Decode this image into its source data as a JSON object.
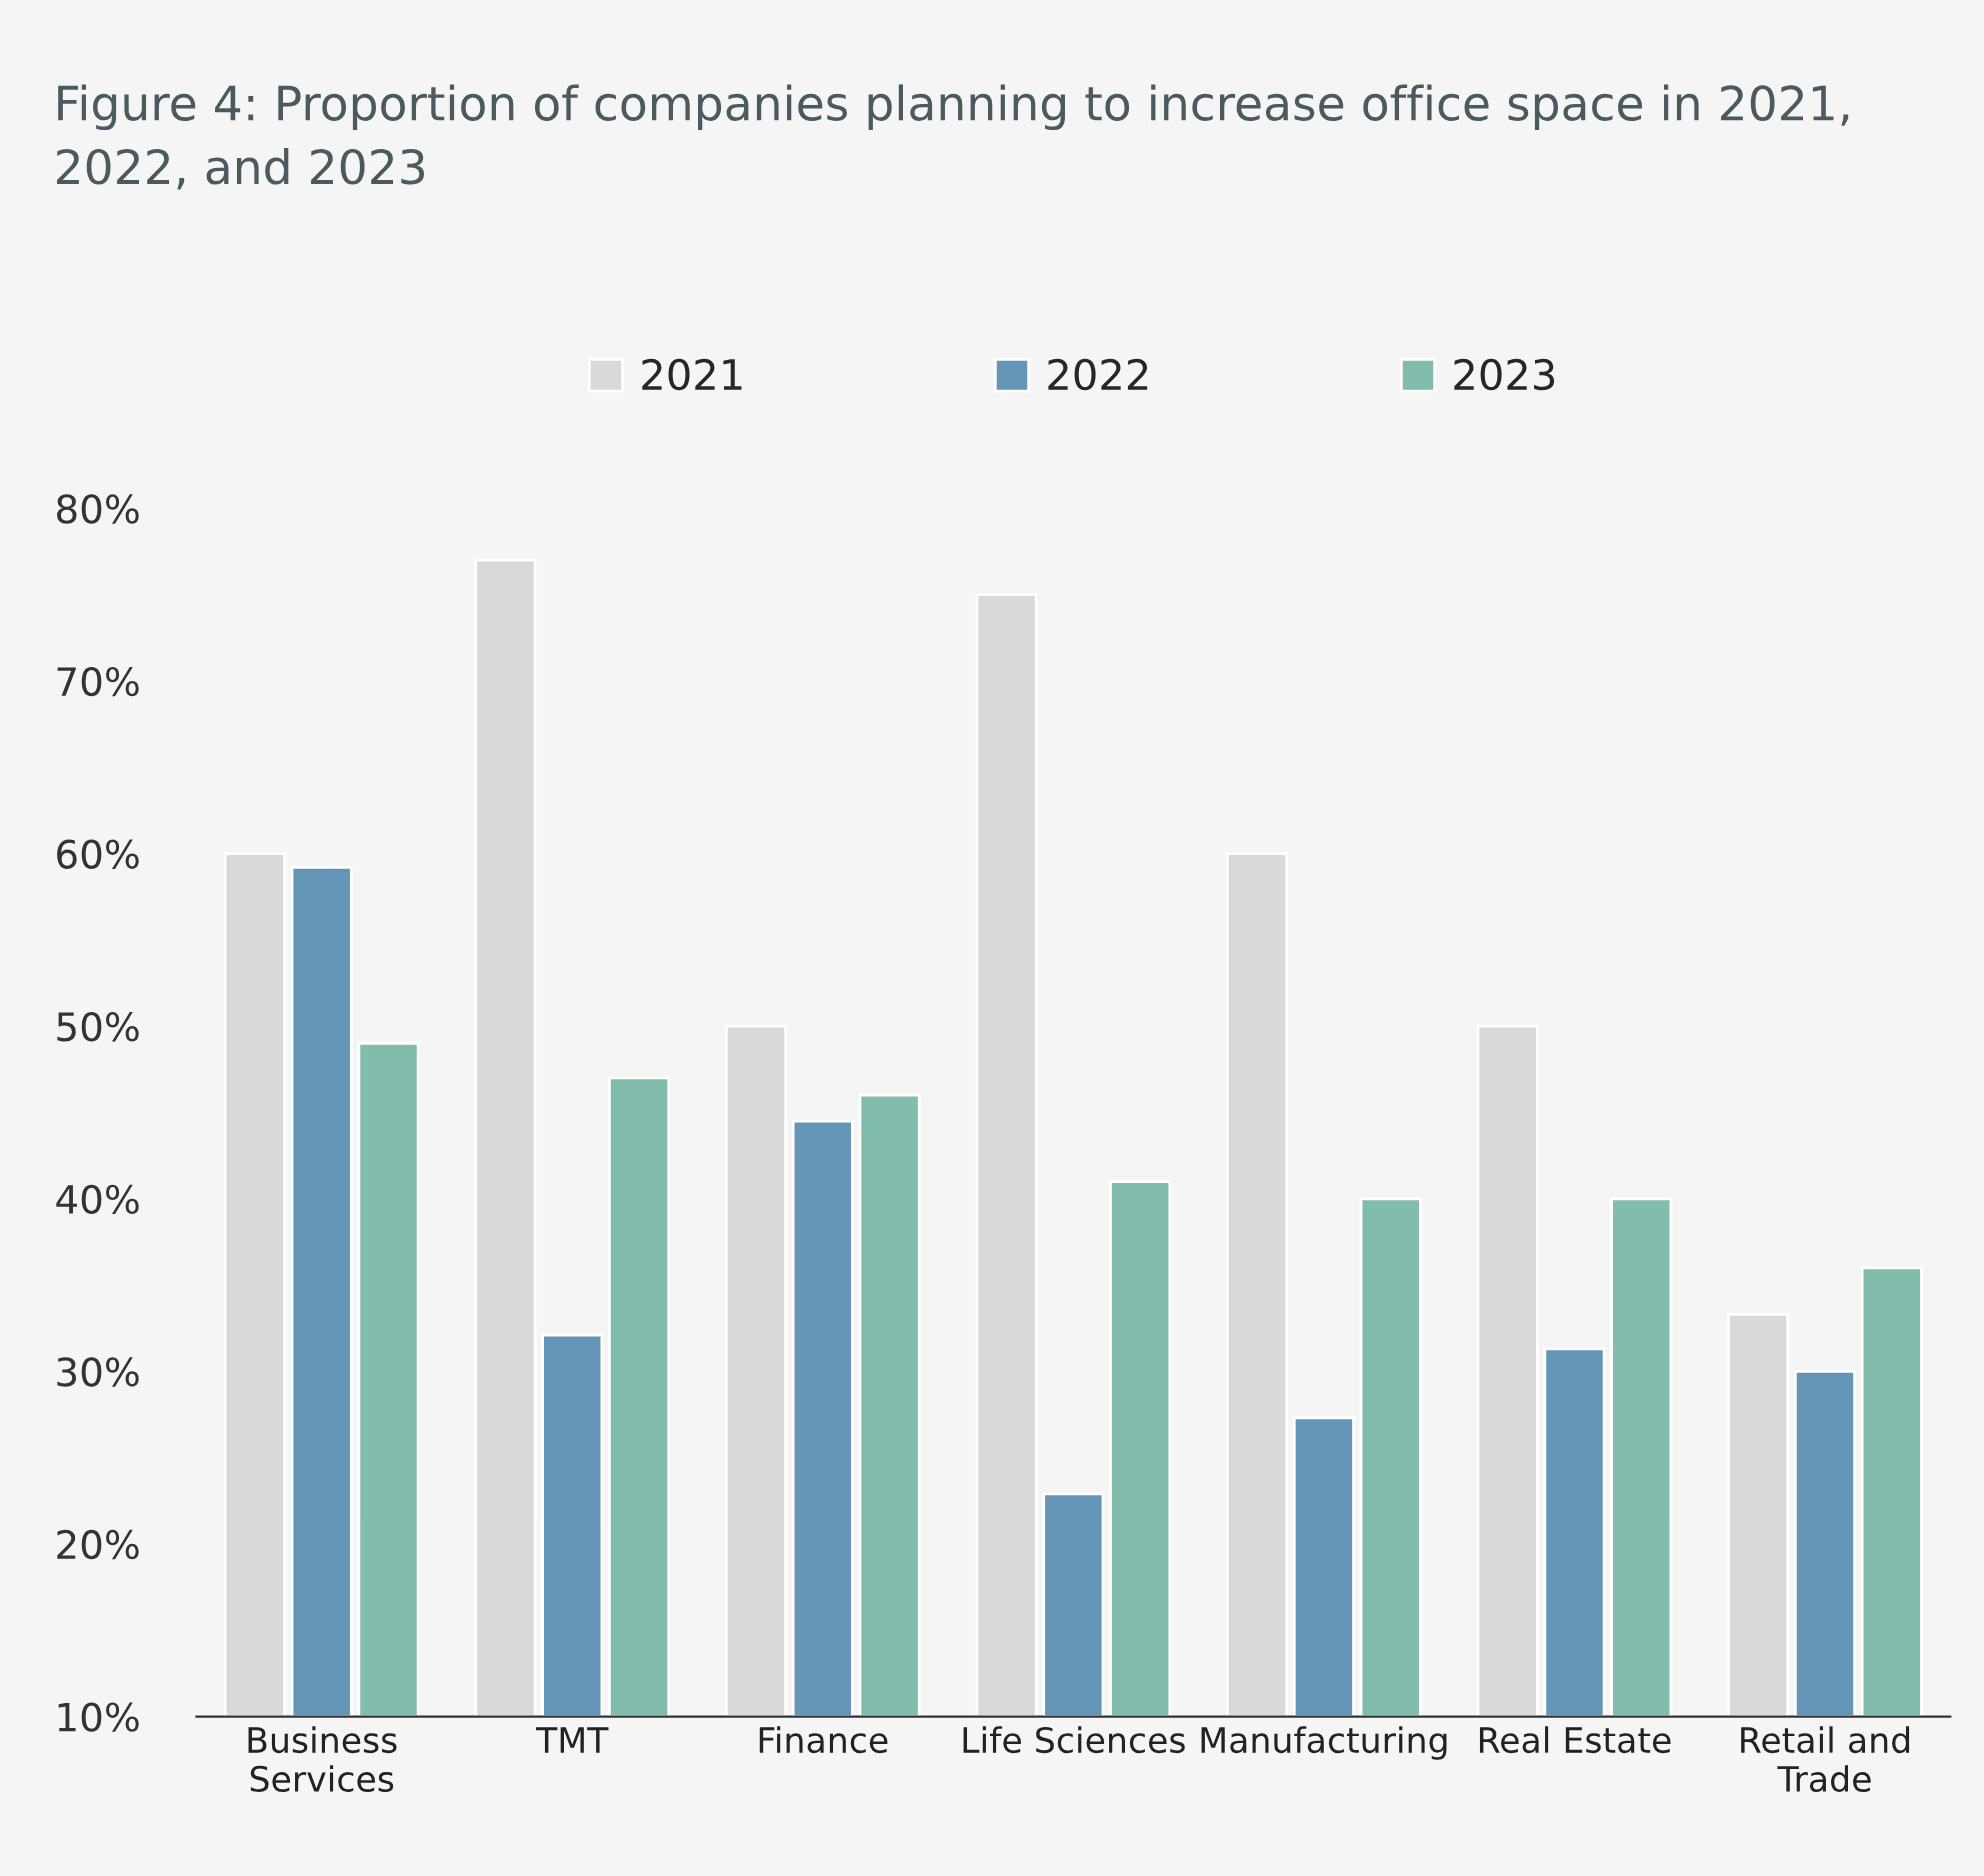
{
  "chart_data": {
    "type": "bar",
    "title": "Figure 4: Proportion of companies planning to increase office space in 2021, 2022, and 2023",
    "categories": [
      "Business\nServices",
      "TMT",
      "Finance",
      "Life Sciences",
      "Manufacturing",
      "Real Estate",
      "Retail and\nTrade"
    ],
    "series": [
      {
        "name": "2021",
        "color": "#d9d9d9",
        "values": [
          60,
          77,
          50,
          75,
          60,
          50,
          33.3
        ]
      },
      {
        "name": "2022",
        "color": "#6596b8",
        "values": [
          59.2,
          32.1,
          44.5,
          22.9,
          27.3,
          31.3,
          30
        ]
      },
      {
        "name": "2023",
        "color": "#82bcad",
        "values": [
          49,
          47,
          46,
          41,
          40,
          40,
          36
        ]
      }
    ],
    "ylim": [
      10,
      80
    ],
    "yticks": [
      {
        "value": 10,
        "label": "10%"
      },
      {
        "value": 20,
        "label": "20%"
      },
      {
        "value": 30,
        "label": "30%"
      },
      {
        "value": 40,
        "label": "40%"
      },
      {
        "value": 50,
        "label": "50%"
      },
      {
        "value": 60,
        "label": "60%"
      },
      {
        "value": 70,
        "label": "70%"
      },
      {
        "value": 80,
        "label": "80%"
      }
    ],
    "grid": false,
    "legend": "top"
  }
}
